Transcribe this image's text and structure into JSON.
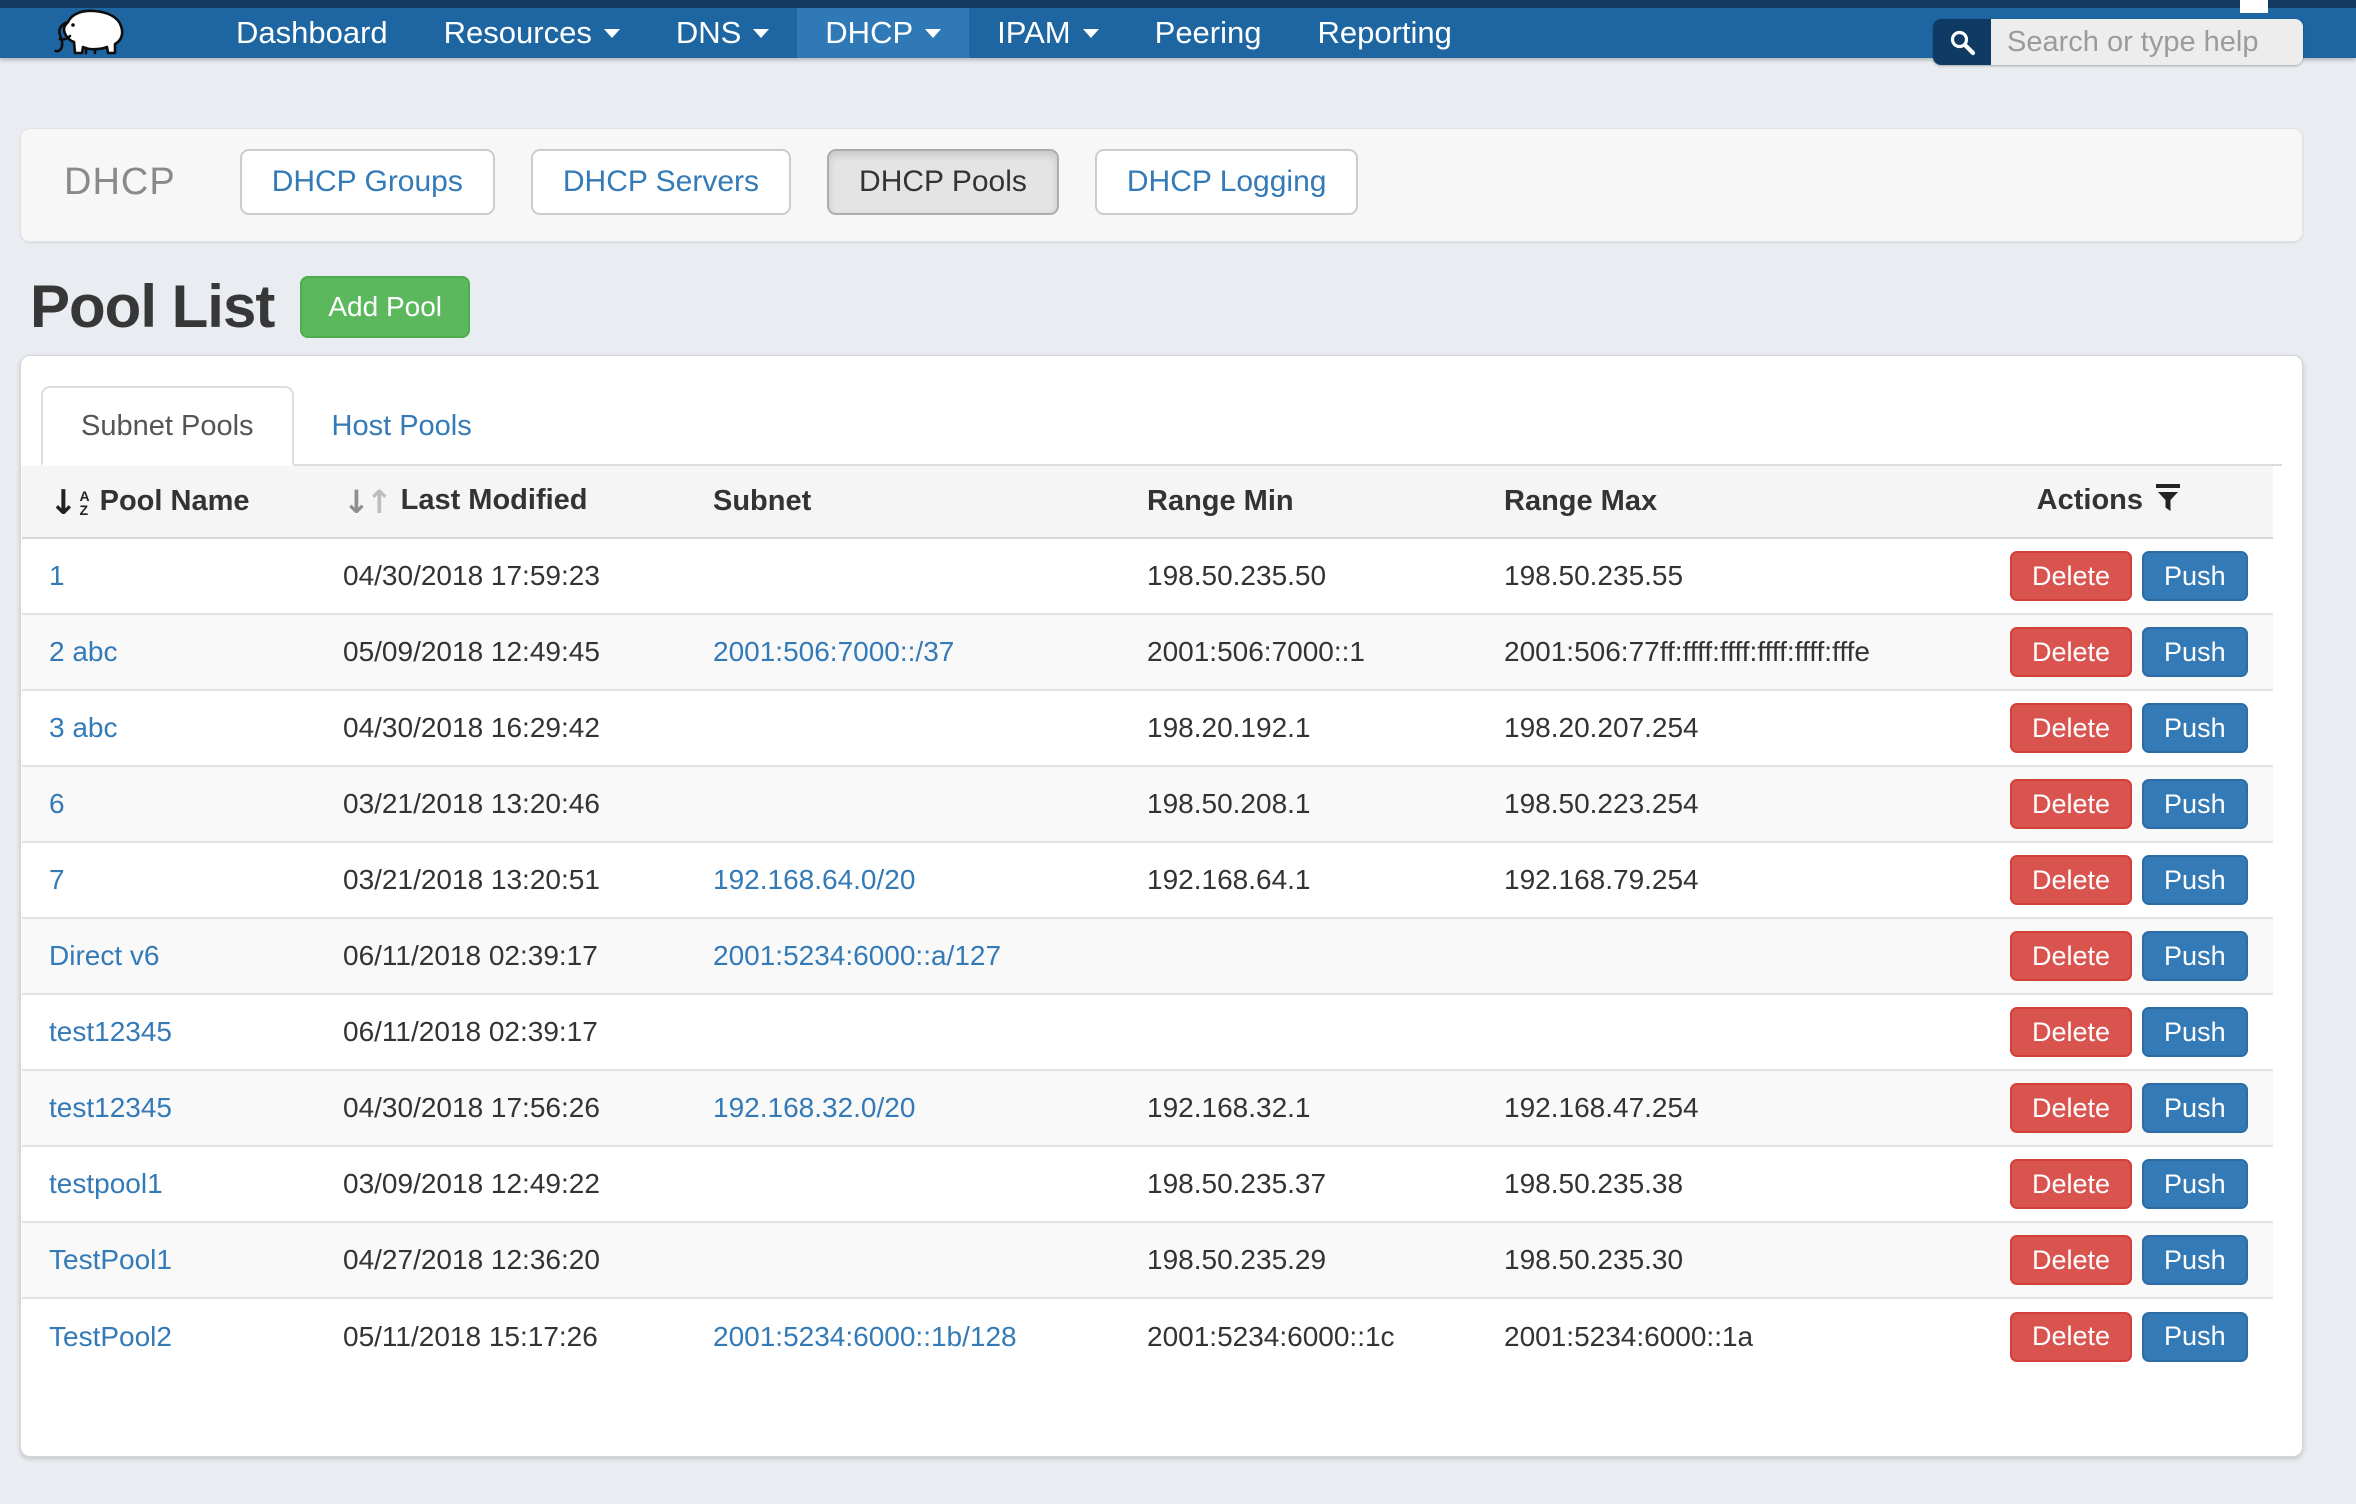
{
  "navbar": {
    "items": [
      {
        "label": "Dashboard",
        "caret": false,
        "active": false
      },
      {
        "label": "Resources",
        "caret": true,
        "active": false
      },
      {
        "label": "DNS",
        "caret": true,
        "active": false
      },
      {
        "label": "DHCP",
        "caret": true,
        "active": true
      },
      {
        "label": "IPAM",
        "caret": true,
        "active": false
      },
      {
        "label": "Peering",
        "caret": false,
        "active": false
      },
      {
        "label": "Reporting",
        "caret": false,
        "active": false
      }
    ],
    "search_placeholder": "Search or type help"
  },
  "dhcp_section": {
    "label": "DHCP",
    "buttons": [
      {
        "label": "DHCP Groups",
        "active": false
      },
      {
        "label": "DHCP Servers",
        "active": false
      },
      {
        "label": "DHCP Pools",
        "active": true
      },
      {
        "label": "DHCP Logging",
        "active": false
      }
    ]
  },
  "page": {
    "title": "Pool List",
    "add_button_label": "Add Pool"
  },
  "tabs": [
    {
      "label": "Subnet Pools",
      "active": true
    },
    {
      "label": "Host Pools",
      "active": false
    }
  ],
  "table": {
    "columns": [
      {
        "label": "Pool Name",
        "icon": "sort_alpha"
      },
      {
        "label": "Last Modified",
        "icon": "sort_both"
      },
      {
        "label": "Subnet",
        "icon": "none"
      },
      {
        "label": "Range Min",
        "icon": "none"
      },
      {
        "label": "Range Max",
        "icon": "none"
      },
      {
        "label": "Actions",
        "icon": "filter"
      }
    ],
    "actions": {
      "delete_label": "Delete",
      "push_label": "Push"
    },
    "rows": [
      {
        "name": "1",
        "modified": "04/30/2018 17:59:23",
        "subnet": "",
        "range_min": "198.50.235.50",
        "range_max": "198.50.235.55"
      },
      {
        "name": "2 abc",
        "modified": "05/09/2018 12:49:45",
        "subnet": "2001:506:7000::/37",
        "range_min": "2001:506:7000::1",
        "range_max": "2001:506:77ff:ffff:ffff:ffff:ffff:fffe"
      },
      {
        "name": "3 abc",
        "modified": "04/30/2018 16:29:42",
        "subnet": "",
        "range_min": "198.20.192.1",
        "range_max": "198.20.207.254"
      },
      {
        "name": "6",
        "modified": "03/21/2018 13:20:46",
        "subnet": "",
        "range_min": "198.50.208.1",
        "range_max": "198.50.223.254"
      },
      {
        "name": "7",
        "modified": "03/21/2018 13:20:51",
        "subnet": "192.168.64.0/20",
        "range_min": "192.168.64.1",
        "range_max": "192.168.79.254"
      },
      {
        "name": "Direct v6",
        "modified": "06/11/2018 02:39:17",
        "subnet": "2001:5234:6000::a/127",
        "range_min": "",
        "range_max": ""
      },
      {
        "name": "test12345",
        "modified": "06/11/2018 02:39:17",
        "subnet": "",
        "range_min": "",
        "range_max": ""
      },
      {
        "name": "test12345",
        "modified": "04/30/2018 17:56:26",
        "subnet": "192.168.32.0/20",
        "range_min": "192.168.32.1",
        "range_max": "192.168.47.254"
      },
      {
        "name": "testpool1",
        "modified": "03/09/2018 12:49:22",
        "subnet": "",
        "range_min": "198.50.235.37",
        "range_max": "198.50.235.38"
      },
      {
        "name": "TestPool1",
        "modified": "04/27/2018 12:36:20",
        "subnet": "",
        "range_min": "198.50.235.29",
        "range_max": "198.50.235.30"
      },
      {
        "name": "TestPool2",
        "modified": "05/11/2018 15:17:26",
        "subnet": "2001:5234:6000::1b/128",
        "range_min": "2001:5234:6000::1c",
        "range_max": "2001:5234:6000::1a"
      }
    ]
  },
  "colors": {
    "top_strip": "#143a63",
    "navbar": "#1e66a2",
    "navbar_active": "#2f7ab6",
    "link_blue": "#337ab7",
    "add_green": "#5cb85c",
    "delete_red": "#d9534f",
    "push_blue": "#337ab7",
    "page_bg": "#e9edf1"
  }
}
